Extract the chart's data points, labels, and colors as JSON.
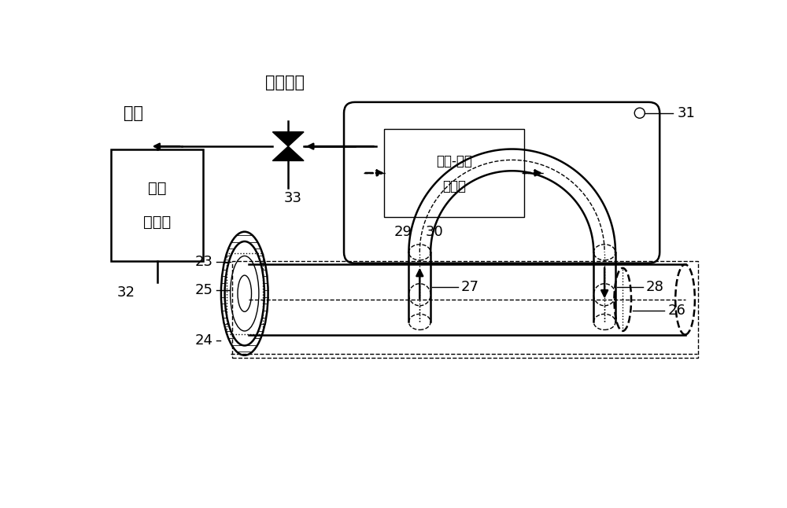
{
  "bg": "#ffffff",
  "lc": "#000000",
  "lw": 1.8,
  "lws": 1.0,
  "hydrogen_gas": "氢气",
  "hydrogen_valve": "氢气阀门",
  "recovery_line1": "氢气",
  "recovery_line2": "回收站",
  "inverter_line1": "直流-交流",
  "inverter_line2": "变流器",
  "n23": "23",
  "n24": "24",
  "n25": "25",
  "n26": "26",
  "n27": "27",
  "n28": "28",
  "n29": "29",
  "n30": "30",
  "n31": "31",
  "n32": "32",
  "n33": "33"
}
